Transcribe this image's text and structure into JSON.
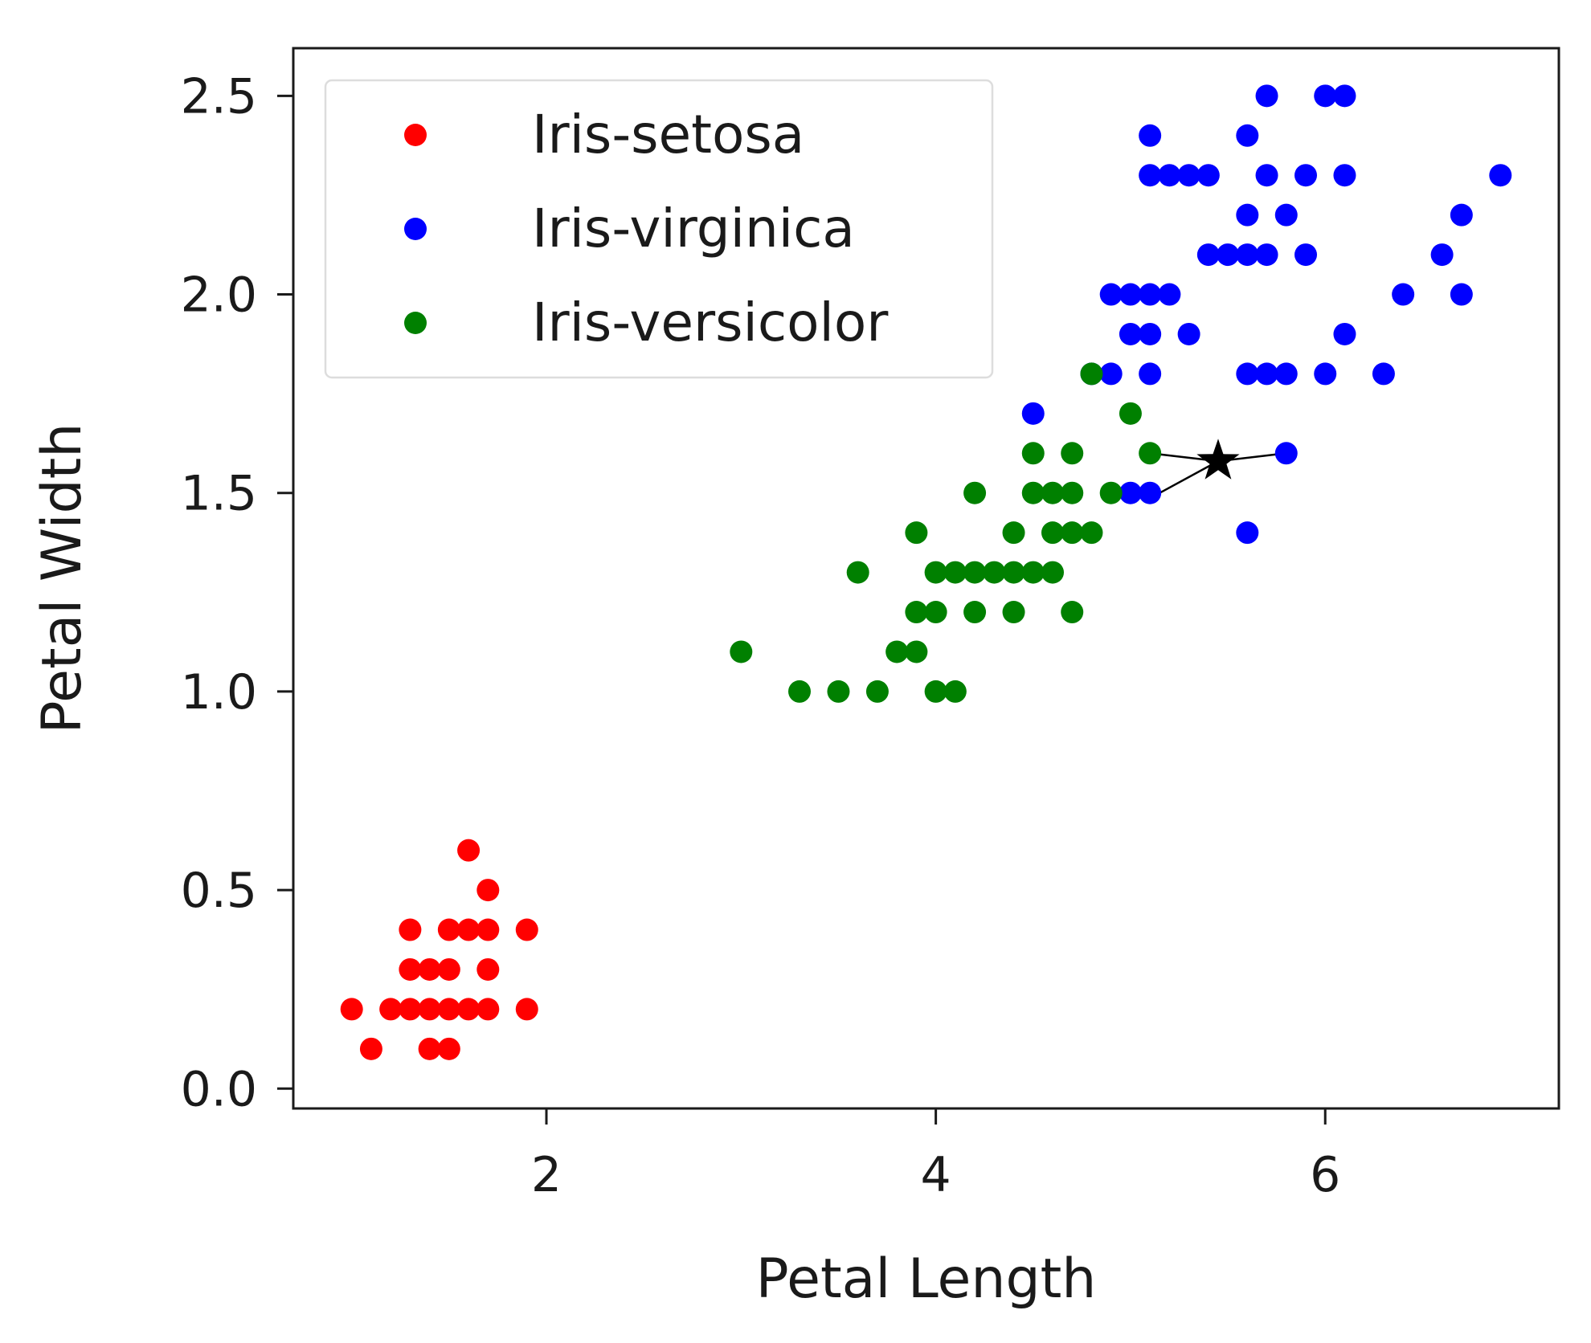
{
  "chart_data": {
    "type": "scatter",
    "title": "",
    "xlabel": "Petal Length",
    "ylabel": "Petal Width",
    "xlim": [
      0.7,
      7.2
    ],
    "ylim": [
      -0.05,
      2.62
    ],
    "xticks": [
      {
        "value": 2,
        "label": "2"
      },
      {
        "value": 4,
        "label": "4"
      },
      {
        "value": 6,
        "label": "6"
      }
    ],
    "yticks": [
      {
        "value": 0.0,
        "label": "0.0"
      },
      {
        "value": 0.5,
        "label": "0.5"
      },
      {
        "value": 1.0,
        "label": "1.0"
      },
      {
        "value": 1.5,
        "label": "1.5"
      },
      {
        "value": 2.0,
        "label": "2.0"
      },
      {
        "value": 2.5,
        "label": "2.5"
      }
    ],
    "grid": false,
    "legend_position": "top-left",
    "series": [
      {
        "name": "Iris-setosa",
        "color": "#ff0000",
        "points": [
          [
            1.0,
            0.2
          ],
          [
            1.1,
            0.1
          ],
          [
            1.2,
            0.2
          ],
          [
            1.3,
            0.2
          ],
          [
            1.3,
            0.3
          ],
          [
            1.3,
            0.4
          ],
          [
            1.4,
            0.1
          ],
          [
            1.4,
            0.2
          ],
          [
            1.4,
            0.3
          ],
          [
            1.5,
            0.1
          ],
          [
            1.5,
            0.2
          ],
          [
            1.5,
            0.3
          ],
          [
            1.5,
            0.4
          ],
          [
            1.6,
            0.2
          ],
          [
            1.6,
            0.4
          ],
          [
            1.6,
            0.6
          ],
          [
            1.7,
            0.2
          ],
          [
            1.7,
            0.3
          ],
          [
            1.7,
            0.4
          ],
          [
            1.7,
            0.5
          ],
          [
            1.9,
            0.2
          ],
          [
            1.9,
            0.4
          ]
        ]
      },
      {
        "name": "Iris-virginica",
        "color": "#0000ff",
        "points": [
          [
            4.5,
            1.7
          ],
          [
            4.8,
            1.8
          ],
          [
            4.9,
            1.8
          ],
          [
            4.9,
            2.0
          ],
          [
            5.0,
            1.5
          ],
          [
            5.0,
            1.9
          ],
          [
            5.0,
            2.0
          ],
          [
            5.1,
            1.5
          ],
          [
            5.1,
            1.8
          ],
          [
            5.1,
            1.9
          ],
          [
            5.1,
            2.0
          ],
          [
            5.1,
            2.3
          ],
          [
            5.1,
            2.4
          ],
          [
            5.2,
            2.0
          ],
          [
            5.2,
            2.3
          ],
          [
            5.3,
            1.9
          ],
          [
            5.3,
            2.3
          ],
          [
            5.4,
            2.1
          ],
          [
            5.4,
            2.3
          ],
          [
            5.5,
            2.1
          ],
          [
            5.6,
            1.4
          ],
          [
            5.6,
            1.8
          ],
          [
            5.6,
            2.1
          ],
          [
            5.6,
            2.2
          ],
          [
            5.6,
            2.4
          ],
          [
            5.7,
            1.8
          ],
          [
            5.7,
            2.1
          ],
          [
            5.7,
            2.3
          ],
          [
            5.7,
            2.5
          ],
          [
            5.8,
            1.6
          ],
          [
            5.8,
            1.8
          ],
          [
            5.8,
            2.2
          ],
          [
            5.9,
            2.1
          ],
          [
            5.9,
            2.3
          ],
          [
            6.0,
            1.8
          ],
          [
            6.0,
            2.5
          ],
          [
            6.1,
            1.9
          ],
          [
            6.1,
            2.3
          ],
          [
            6.1,
            2.5
          ],
          [
            6.3,
            1.8
          ],
          [
            6.4,
            2.0
          ],
          [
            6.6,
            2.1
          ],
          [
            6.7,
            2.0
          ],
          [
            6.7,
            2.2
          ],
          [
            6.9,
            2.3
          ]
        ]
      },
      {
        "name": "Iris-versicolor",
        "color": "#008000",
        "points": [
          [
            3.0,
            1.1
          ],
          [
            3.3,
            1.0
          ],
          [
            3.5,
            1.0
          ],
          [
            3.6,
            1.3
          ],
          [
            3.7,
            1.0
          ],
          [
            3.8,
            1.1
          ],
          [
            3.9,
            1.1
          ],
          [
            3.9,
            1.2
          ],
          [
            3.9,
            1.4
          ],
          [
            4.0,
            1.0
          ],
          [
            4.0,
            1.2
          ],
          [
            4.0,
            1.3
          ],
          [
            4.1,
            1.0
          ],
          [
            4.1,
            1.3
          ],
          [
            4.2,
            1.2
          ],
          [
            4.2,
            1.3
          ],
          [
            4.2,
            1.5
          ],
          [
            4.3,
            1.3
          ],
          [
            4.4,
            1.2
          ],
          [
            4.4,
            1.3
          ],
          [
            4.4,
            1.4
          ],
          [
            4.5,
            1.3
          ],
          [
            4.5,
            1.5
          ],
          [
            4.5,
            1.6
          ],
          [
            4.6,
            1.3
          ],
          [
            4.6,
            1.4
          ],
          [
            4.6,
            1.5
          ],
          [
            4.7,
            1.2
          ],
          [
            4.7,
            1.4
          ],
          [
            4.7,
            1.5
          ],
          [
            4.7,
            1.6
          ],
          [
            4.8,
            1.4
          ],
          [
            4.8,
            1.8
          ],
          [
            4.9,
            1.5
          ],
          [
            5.0,
            1.7
          ],
          [
            5.1,
            1.6
          ]
        ]
      }
    ],
    "query_point": {
      "marker": "star",
      "color": "#000000",
      "point": [
        5.45,
        1.58
      ]
    },
    "neighbor_lines": [
      {
        "from": [
          5.45,
          1.58
        ],
        "to": [
          5.8,
          1.6
        ]
      },
      {
        "from": [
          5.45,
          1.58
        ],
        "to": [
          5.1,
          1.6
        ]
      },
      {
        "from": [
          5.45,
          1.58
        ],
        "to": [
          5.15,
          1.5
        ]
      }
    ]
  }
}
